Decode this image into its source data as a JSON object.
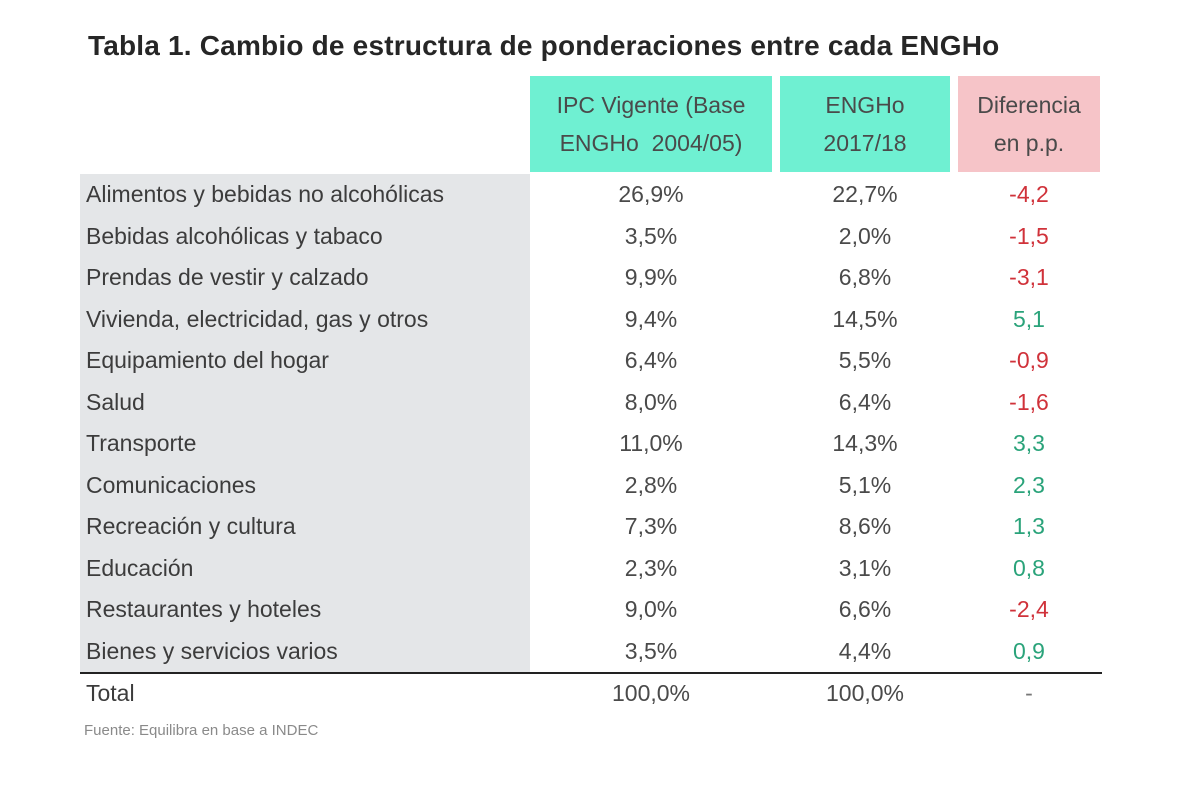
{
  "title": "Tabla 1. Cambio de estructura de ponderaciones entre cada ENGHo",
  "headers": {
    "ipc_line1": "IPC Vigente (Base",
    "ipc_line2": "ENGHo  2004/05)",
    "engho_line1": "ENGHo",
    "engho_line2": "2017/18",
    "dif_line1": "Diferencia",
    "dif_line2": "en p.p."
  },
  "rows": [
    {
      "label": "Alimentos y bebidas no alcohólicas",
      "ipc": "26,9%",
      "engho": "22,7%",
      "dif": "-4,2"
    },
    {
      "label": "Bebidas alcohólicas y tabaco",
      "ipc": "3,5%",
      "engho": "2,0%",
      "dif": "-1,5"
    },
    {
      "label": "Prendas de vestir y calzado",
      "ipc": "9,9%",
      "engho": "6,8%",
      "dif": "-3,1"
    },
    {
      "label": "Vivienda, electricidad, gas y otros",
      "ipc": "9,4%",
      "engho": "14,5%",
      "dif": "5,1"
    },
    {
      "label": "Equipamiento del hogar",
      "ipc": "6,4%",
      "engho": "5,5%",
      "dif": "-0,9"
    },
    {
      "label": "Salud",
      "ipc": "8,0%",
      "engho": "6,4%",
      "dif": "-1,6"
    },
    {
      "label": "Transporte",
      "ipc": "11,0%",
      "engho": "14,3%",
      "dif": "3,3"
    },
    {
      "label": "Comunicaciones",
      "ipc": "2,8%",
      "engho": "5,1%",
      "dif": "2,3"
    },
    {
      "label": "Recreación y cultura",
      "ipc": "7,3%",
      "engho": "8,6%",
      "dif": "1,3"
    },
    {
      "label": "Educación",
      "ipc": "2,3%",
      "engho": "3,1%",
      "dif": "0,8"
    },
    {
      "label": "Restaurantes y hoteles",
      "ipc": "9,0%",
      "engho": "6,6%",
      "dif": "-2,4"
    },
    {
      "label": "Bienes y servicios varios",
      "ipc": "3,5%",
      "engho": "4,4%",
      "dif": "0,9"
    }
  ],
  "total": {
    "label": "Total",
    "ipc": "100,0%",
    "engho": "100,0%",
    "dif": "-"
  },
  "source": "Fuente: Equilibra en base a INDEC",
  "colors": {
    "header_teal": "#6ff0d2",
    "header_pink": "#f6c4c8",
    "negative": "#d0323a",
    "positive": "#2aa37a",
    "label_bg": "#e4e6e8"
  }
}
